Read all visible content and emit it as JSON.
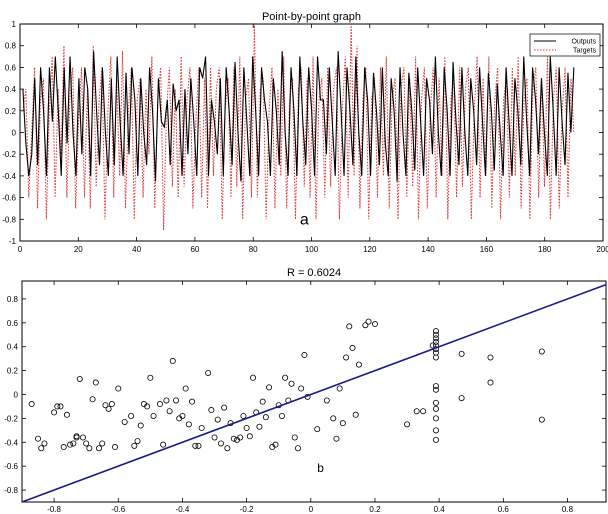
{
  "chart_data": [
    {
      "type": "line",
      "title": "Point-by-point graph",
      "panel_label": "a",
      "xlim": [
        0,
        200
      ],
      "ylim": [
        -1,
        1
      ],
      "xticks": [
        0,
        20,
        40,
        60,
        80,
        100,
        120,
        140,
        160,
        180,
        200
      ],
      "yticks": [
        -1,
        -0.8,
        -0.6,
        -0.4,
        -0.2,
        0,
        0.2,
        0.4,
        0.6,
        0.8,
        1
      ],
      "legend_position": "top-right",
      "series": [
        {
          "name": "Outputs",
          "color": "#000000",
          "style": "solid",
          "values": [
            0.4,
            -0.1,
            -0.4,
            -0.2,
            0.5,
            -0.3,
            0.6,
            0.2,
            -0.4,
            0.6,
            0.1,
            0.7,
            0.2,
            -0.4,
            0.6,
            -0.1,
            0.7,
            0.0,
            -0.4,
            0.5,
            -0.2,
            0.6,
            0.4,
            -0.4,
            0.75,
            0.2,
            -0.3,
            0.6,
            0.0,
            -0.4,
            0.5,
            -0.3,
            0.7,
            0.1,
            -0.4,
            0.55,
            -0.2,
            0.6,
            0.3,
            -0.4,
            0.5,
            0.0,
            -0.3,
            0.6,
            0.2,
            -0.45,
            0.5,
            0.1,
            0.05,
            0.3,
            -0.3,
            0.45,
            0.2,
            0.3,
            -0.4,
            0.4,
            -0.2,
            0.5,
            0.1,
            -0.4,
            0.6,
            0.5,
            0.7,
            -0.4,
            0.3,
            0.1,
            -0.2,
            0.5,
            -0.4,
            0.6,
            0.2,
            -0.3,
            0.65,
            0.0,
            -0.45,
            0.6,
            0.1,
            -0.4,
            0.7,
            0.2,
            -0.4,
            0.6,
            0.3,
            0.1,
            -0.4,
            0.5,
            0.2,
            -0.3,
            0.75,
            0.0,
            -0.4,
            0.6,
            0.2,
            -0.4,
            0.7,
            0.1,
            -0.3,
            0.6,
            0.2,
            -0.4,
            0.7,
            0.3,
            0.3,
            -0.2,
            0.6,
            0.1,
            -0.4,
            0.75,
            0.2,
            -0.4,
            0.6,
            0.2,
            -0.3,
            0.7,
            0.0,
            -0.4,
            0.6,
            0.3,
            -0.4,
            0.55,
            0.2,
            -0.3,
            0.6,
            -0.1,
            -0.4,
            0.5,
            0.2,
            -0.45,
            0.6,
            0.0,
            -0.4,
            0.55,
            0.2,
            -0.35,
            0.6,
            0.1,
            -0.4,
            0.5,
            0.3,
            -0.2,
            0.7,
            0.0,
            -0.4,
            0.6,
            0.2,
            -0.4,
            0.65,
            0.1,
            -0.3,
            0.6,
            0.0,
            -0.4,
            0.5,
            0.2,
            -0.3,
            0.6,
            0.1,
            -0.4,
            0.55,
            0.2,
            -0.35,
            0.45,
            0.0,
            -0.4,
            0.6,
            0.1,
            -0.4,
            0.5,
            0.2,
            -0.3,
            0.7,
            0.1,
            -0.4,
            0.6,
            0.3,
            -0.2,
            0.5,
            0.0,
            -0.4,
            0.7,
            0.2,
            -0.4,
            0.6,
            0.1,
            -0.3,
            0.55,
            0.0,
            0.6
          ]
        },
        {
          "name": "Targets",
          "color": "#e03030",
          "style": "dotted",
          "values": [
            0.2,
            0.4,
            -0.6,
            0.0,
            0.6,
            -0.7,
            0.3,
            0.5,
            -0.8,
            0.2,
            0.7,
            -0.6,
            0.4,
            -0.2,
            0.8,
            -0.6,
            0.3,
            0.6,
            -0.7,
            0.1,
            0.6,
            -0.6,
            0.4,
            -0.7,
            0.8,
            -0.5,
            0.3,
            0.6,
            -0.8,
            0.2,
            0.7,
            -0.6,
            0.5,
            -0.4,
            0.75,
            -0.7,
            0.2,
            0.6,
            -0.8,
            0.3,
            0.5,
            -0.6,
            0.4,
            -0.2,
            0.7,
            -0.7,
            0.3,
            0.6,
            -0.9,
            0.2,
            0.6,
            -0.5,
            0.4,
            -0.6,
            0.7,
            -0.5,
            0.3,
            0.6,
            -0.7,
            0.1,
            0.6,
            -0.6,
            0.5,
            -0.7,
            0.6,
            -0.4,
            0.4,
            0.6,
            -0.8,
            0.2,
            0.5,
            -0.6,
            0.6,
            -0.5,
            0.7,
            -0.8,
            0.3,
            0.5,
            -0.6,
            1.0,
            -0.6,
            0.4,
            0.5,
            -0.8,
            0.2,
            0.6,
            -0.7,
            0.4,
            -0.4,
            0.7,
            -0.7,
            0.3,
            0.5,
            -0.8,
            0.4,
            0.6,
            -0.5,
            0.5,
            -0.6,
            0.7,
            -0.8,
            0.3,
            0.5,
            -0.6,
            0.6,
            -0.5,
            0.4,
            0.6,
            -0.8,
            0.2,
            0.7,
            -0.6,
            1.0,
            -0.4,
            0.8,
            -0.7,
            0.3,
            0.6,
            -0.8,
            0.3,
            0.5,
            -0.6,
            0.6,
            -0.4,
            0.7,
            -0.7,
            0.3,
            0.5,
            -0.8,
            0.4,
            0.6,
            -0.6,
            0.5,
            -0.5,
            0.7,
            -0.8,
            0.3,
            0.6,
            -0.7,
            0.2,
            0.6,
            -0.6,
            0.5,
            -0.4,
            0.7,
            -0.8,
            0.3,
            0.5,
            -0.6,
            0.6,
            -0.5,
            0.4,
            0.6,
            -0.8,
            0.2,
            0.7,
            -0.6,
            0.5,
            -0.4,
            0.7,
            -0.7,
            0.3,
            0.6,
            -0.8,
            0.3,
            0.5,
            -0.6,
            0.6,
            -0.4,
            0.7,
            -0.7,
            0.3,
            0.5,
            -0.8,
            0.4,
            0.6,
            -0.6,
            0.5,
            -0.5,
            0.7,
            -0.8,
            0.3,
            0.6,
            -0.7,
            0.2,
            0.6,
            -0.6,
            0.5,
            0.0
          ]
        }
      ]
    },
    {
      "type": "scatter",
      "title": "R = 0.6024",
      "panel_label": "b",
      "xlim": [
        -0.9,
        0.92
      ],
      "ylim": [
        -0.9,
        0.95
      ],
      "xticks": [
        -0.8,
        -0.6,
        -0.4,
        -0.2,
        0,
        0.2,
        0.4,
        0.6,
        0.8
      ],
      "yticks": [
        -0.8,
        -0.6,
        -0.4,
        -0.2,
        0,
        0.2,
        0.4,
        0.6,
        0.8
      ],
      "fit_line": {
        "color": "#1a1a8c",
        "x": [
          -0.9,
          0.92
        ],
        "y": [
          -0.9,
          0.92
        ]
      },
      "points": [
        [
          -0.87,
          -0.08
        ],
        [
          -0.85,
          -0.37
        ],
        [
          -0.84,
          -0.45
        ],
        [
          -0.83,
          -0.41
        ],
        [
          -0.8,
          -0.15
        ],
        [
          -0.79,
          -0.1
        ],
        [
          -0.78,
          -0.1
        ],
        [
          -0.77,
          -0.44
        ],
        [
          -0.76,
          -0.17
        ],
        [
          -0.75,
          -0.42
        ],
        [
          -0.74,
          -0.41
        ],
        [
          -0.73,
          -0.36
        ],
        [
          -0.73,
          -0.35
        ],
        [
          -0.72,
          0.13
        ],
        [
          -0.71,
          -0.36
        ],
        [
          -0.7,
          -0.41
        ],
        [
          -0.69,
          -0.45
        ],
        [
          -0.68,
          -0.04
        ],
        [
          -0.67,
          0.1
        ],
        [
          -0.66,
          -0.45
        ],
        [
          -0.65,
          -0.41
        ],
        [
          -0.64,
          -0.09
        ],
        [
          -0.63,
          -0.12
        ],
        [
          -0.62,
          -0.08
        ],
        [
          -0.61,
          -0.44
        ],
        [
          -0.6,
          0.05
        ],
        [
          -0.58,
          -0.23
        ],
        [
          -0.56,
          -0.18
        ],
        [
          -0.55,
          -0.43
        ],
        [
          -0.54,
          -0.39
        ],
        [
          -0.53,
          -0.26
        ],
        [
          -0.52,
          -0.08
        ],
        [
          -0.51,
          -0.1
        ],
        [
          -0.5,
          0.14
        ],
        [
          -0.49,
          -0.18
        ],
        [
          -0.47,
          -0.08
        ],
        [
          -0.46,
          -0.42
        ],
        [
          -0.45,
          -0.05
        ],
        [
          -0.44,
          -0.14
        ],
        [
          -0.43,
          0.28
        ],
        [
          -0.42,
          -0.05
        ],
        [
          -0.41,
          -0.2
        ],
        [
          -0.4,
          -0.18
        ],
        [
          -0.39,
          0.05
        ],
        [
          -0.38,
          -0.25
        ],
        [
          -0.37,
          -0.06
        ],
        [
          -0.36,
          -0.43
        ],
        [
          -0.35,
          -0.43
        ],
        [
          -0.34,
          -0.28
        ],
        [
          -0.32,
          0.18
        ],
        [
          -0.31,
          -0.13
        ],
        [
          -0.3,
          -0.36
        ],
        [
          -0.29,
          -0.21
        ],
        [
          -0.28,
          -0.41
        ],
        [
          -0.27,
          -0.11
        ],
        [
          -0.26,
          -0.45
        ],
        [
          -0.25,
          -0.24
        ],
        [
          -0.24,
          -0.37
        ],
        [
          -0.23,
          -0.38
        ],
        [
          -0.22,
          -0.36
        ],
        [
          -0.21,
          -0.18
        ],
        [
          -0.2,
          -0.28
        ],
        [
          -0.19,
          -0.35
        ],
        [
          -0.18,
          0.14
        ],
        [
          -0.17,
          -0.15
        ],
        [
          -0.16,
          -0.27
        ],
        [
          -0.15,
          -0.06
        ],
        [
          -0.14,
          -0.19
        ],
        [
          -0.13,
          0.06
        ],
        [
          -0.12,
          -0.44
        ],
        [
          -0.11,
          -0.42
        ],
        [
          -0.1,
          -0.09
        ],
        [
          -0.09,
          -0.18
        ],
        [
          -0.08,
          0.14
        ],
        [
          -0.07,
          -0.05
        ],
        [
          -0.06,
          0.09
        ],
        [
          -0.05,
          -0.36
        ],
        [
          -0.04,
          -0.45
        ],
        [
          -0.03,
          0.05
        ],
        [
          -0.02,
          0.33
        ],
        [
          -0.01,
          -0.02
        ],
        [
          0.02,
          -0.29
        ],
        [
          0.05,
          -0.05
        ],
        [
          0.07,
          -0.2
        ],
        [
          0.08,
          -0.37
        ],
        [
          0.09,
          0.05
        ],
        [
          0.1,
          -0.24
        ],
        [
          0.11,
          0.31
        ],
        [
          0.12,
          0.57
        ],
        [
          0.13,
          0.39
        ],
        [
          0.14,
          -0.17
        ],
        [
          0.15,
          0.25
        ],
        [
          0.17,
          0.58
        ],
        [
          0.18,
          0.61
        ],
        [
          0.2,
          0.59
        ],
        [
          0.3,
          -0.25
        ],
        [
          0.33,
          -0.14
        ],
        [
          0.35,
          -0.14
        ],
        [
          0.38,
          0.41
        ],
        [
          0.39,
          -0.38
        ],
        [
          0.39,
          -0.3
        ],
        [
          0.39,
          -0.2
        ],
        [
          0.39,
          -0.12
        ],
        [
          0.39,
          -0.07
        ],
        [
          0.39,
          0.04
        ],
        [
          0.39,
          0.07
        ],
        [
          0.39,
          0.31
        ],
        [
          0.39,
          0.35
        ],
        [
          0.39,
          0.38
        ],
        [
          0.39,
          0.41
        ],
        [
          0.39,
          0.44
        ],
        [
          0.39,
          0.47
        ],
        [
          0.39,
          0.5
        ],
        [
          0.39,
          0.53
        ],
        [
          0.47,
          0.34
        ],
        [
          0.47,
          -0.03
        ],
        [
          0.56,
          0.1
        ],
        [
          0.56,
          0.31
        ],
        [
          0.72,
          -0.21
        ],
        [
          0.72,
          0.36
        ]
      ]
    }
  ]
}
